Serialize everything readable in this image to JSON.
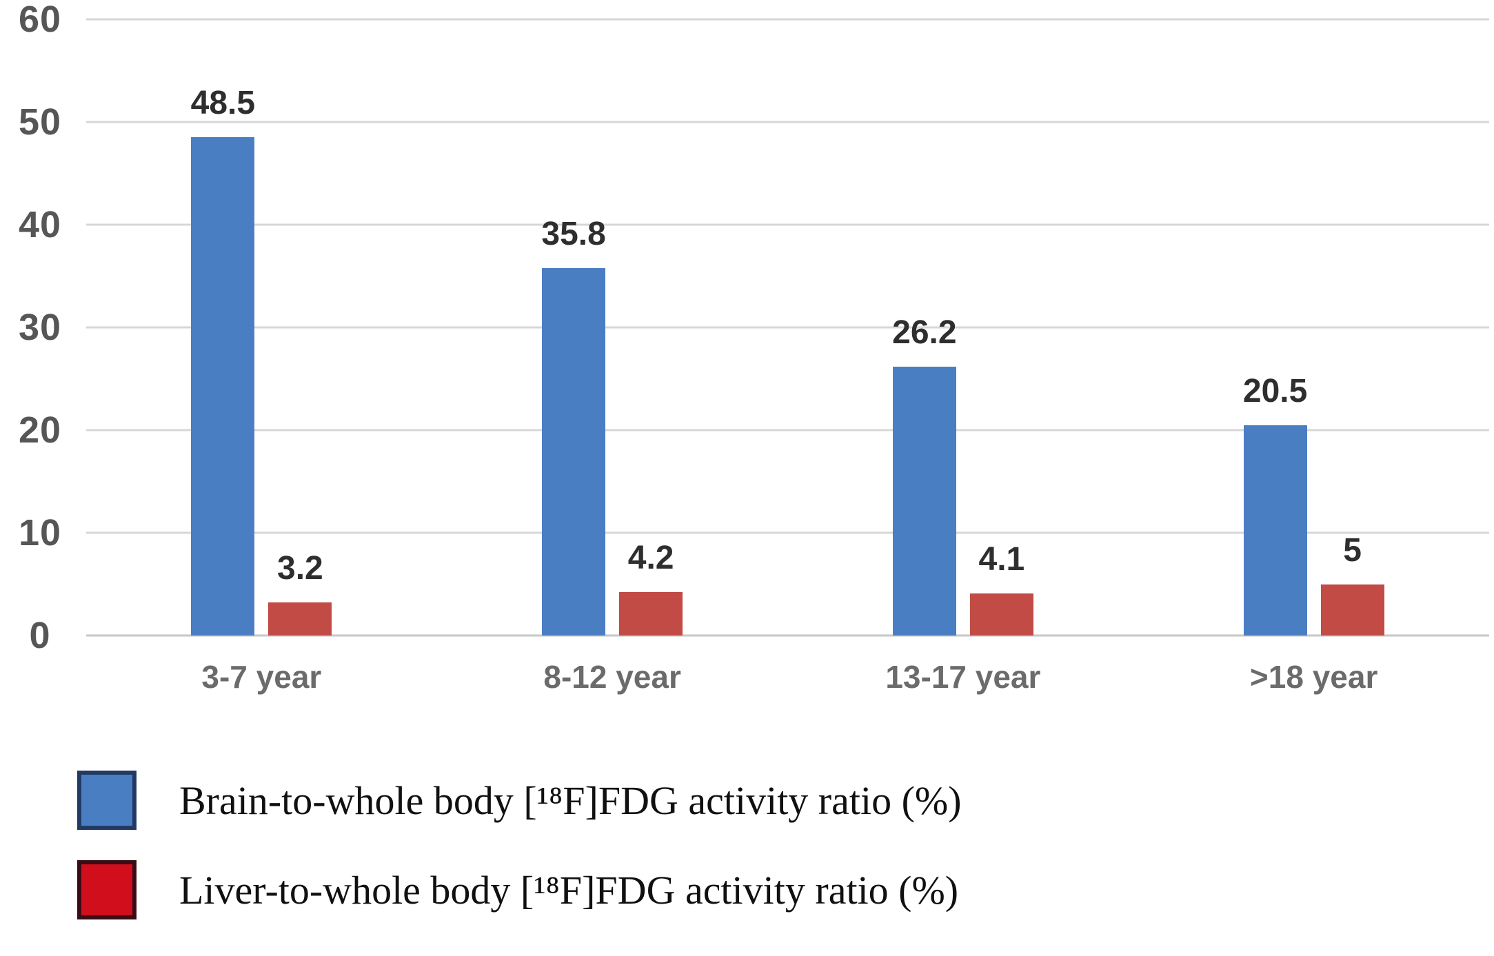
{
  "chart_data": {
    "type": "bar",
    "title": "",
    "xlabel": "",
    "ylabel": "",
    "categories": [
      "3-7 year",
      "8-12 year",
      "13-17 year",
      ">18 year"
    ],
    "series": [
      {
        "name": "Brain-to-whole body [¹⁸F]FDG activity ratio (%)",
        "values": [
          48.5,
          35.8,
          26.2,
          20.5
        ],
        "value_labels": [
          "48.5",
          "35.8",
          "26.2",
          "20.5"
        ],
        "color": "#4a7ec2"
      },
      {
        "name": "Liver-to-whole body [¹⁸F]FDG activity ratio (%)",
        "values": [
          3.2,
          4.2,
          4.1,
          5
        ],
        "value_labels": [
          "3.2",
          "4.2",
          "4.1",
          "5"
        ],
        "color": "#c24b45"
      }
    ],
    "ylim": [
      0,
      60
    ],
    "yticks": [
      0,
      10,
      20,
      30,
      40,
      50,
      60
    ],
    "grid": true,
    "legend_position": "bottom-left",
    "gridline_color": "#d7d7d7",
    "background_color": "#ffffff"
  },
  "legend": {
    "items": [
      {
        "label": "Brain-to-whole body [¹⁸F]FDG activity ratio (%)",
        "swatch_color": "#4a7ec2",
        "swatch_border": "#223a63"
      },
      {
        "label": "Liver-to-whole body [¹⁸F]FDG activity ratio (%)",
        "swatch_color": "#d10f1c",
        "swatch_border": "#3a0d16"
      }
    ]
  }
}
